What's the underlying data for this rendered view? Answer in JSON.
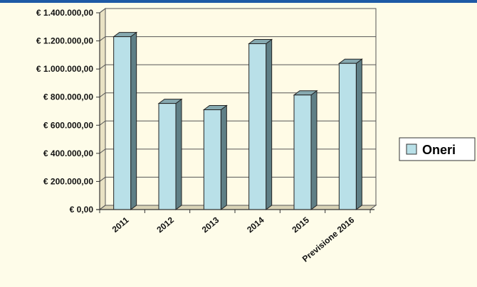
{
  "chart_data": {
    "type": "bar",
    "categories": [
      "2011",
      "2012",
      "2013",
      "2014",
      "2015",
      "Previsione 2016"
    ],
    "series": [
      {
        "name": "Oneri",
        "values": [
          1230000,
          755000,
          710000,
          1180000,
          815000,
          1040000
        ]
      }
    ],
    "ylim": [
      0,
      1400000
    ],
    "yticks": [
      0,
      200000,
      400000,
      600000,
      800000,
      1000000,
      1200000,
      1400000
    ],
    "ytick_labels": [
      "€ 0,00",
      "€ 200.000,00",
      "€ 400.000,00",
      "€ 600.000,00",
      "€ 800.000,00",
      "€ 1.000.000,00",
      "€ 1.200.000,00",
      "€ 1.400.000,00"
    ],
    "grid": true,
    "legend": "right",
    "bar_color": "#b9e0e8",
    "bar_side_color": "#5f7f86",
    "bar_top_color": "#86a9b0"
  }
}
